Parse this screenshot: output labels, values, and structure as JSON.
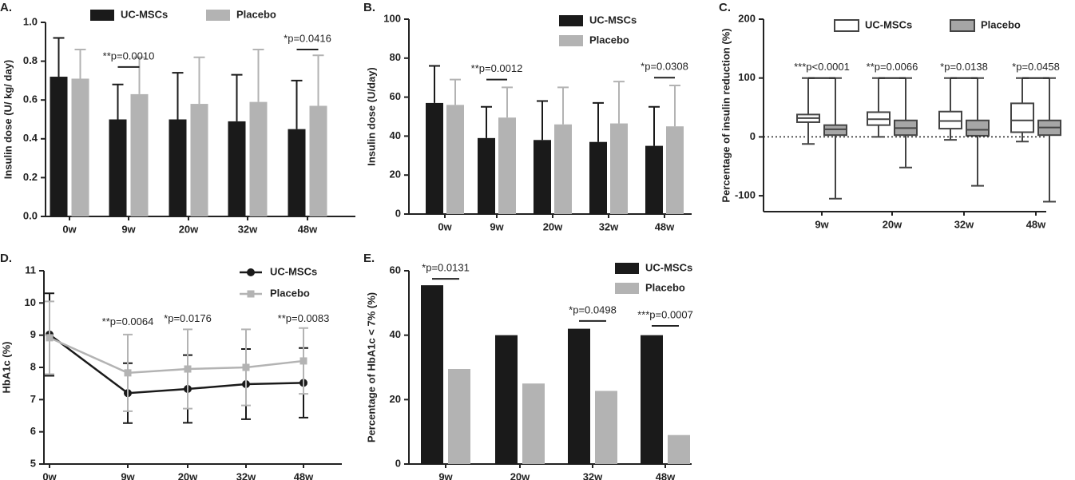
{
  "chart_data": [
    {
      "type": "bar",
      "title": "A.",
      "y_label": "Insulin dose (U/ kg/ day)",
      "categories": [
        "0w",
        "9w",
        "20w",
        "32w",
        "48w"
      ],
      "series": [
        {
          "name": "UC-MSCs",
          "color": "#1a1a1a",
          "values": [
            0.72,
            0.5,
            0.5,
            0.49,
            0.45
          ],
          "errors": [
            0.2,
            0.18,
            0.24,
            0.24,
            0.25
          ]
        },
        {
          "name": "Placebo",
          "color": "#b3b3b3",
          "values": [
            0.71,
            0.63,
            0.58,
            0.59,
            0.57
          ],
          "errors": [
            0.15,
            0.19,
            0.24,
            0.27,
            0.26
          ]
        }
      ],
      "ylim": [
        0,
        1.0
      ],
      "yticks": [
        {
          "value": 0,
          "label": "0.0"
        },
        0.2,
        0.4,
        0.6,
        0.8,
        {
          "value": 1.0,
          "label": "1.0"
        }
      ],
      "annotations": [
        "**p=0.0010",
        "*p=0.0416"
      ]
    },
    {
      "type": "bar",
      "title": "B.",
      "y_label": "Insulin dose (U/day)",
      "categories": [
        "0w",
        "9w",
        "20w",
        "32w",
        "48w"
      ],
      "series": [
        {
          "name": "UC-MSCs",
          "color": "#1a1a1a",
          "values": [
            57,
            39,
            38,
            37,
            35
          ],
          "errors": [
            19,
            16,
            20,
            20,
            20
          ]
        },
        {
          "name": "Placebo",
          "color": "#b3b3b3",
          "values": [
            56,
            49.5,
            46,
            46.5,
            45
          ],
          "errors": [
            13,
            15.5,
            19,
            21.5,
            21
          ]
        }
      ],
      "ylim": [
        0,
        100
      ],
      "yticks": [
        0,
        20,
        40,
        60,
        80,
        100
      ],
      "annotations": [
        "**p=0.0012",
        "*p=0.0308"
      ]
    },
    {
      "type": "box",
      "title": "C.",
      "y_label": "Percentage of insulin reduction (%)",
      "categories": [
        "9w",
        "20w",
        "32w",
        "48w"
      ],
      "series": [
        {
          "name": "UC-MSCs",
          "color": "#ffffff",
          "values": [
            [
              -12,
              25,
              32,
              38,
              100
            ],
            [
              0,
              20,
              30,
              42,
              100
            ],
            [
              -5,
              14,
              27,
              43,
              100
            ],
            [
              -8,
              8,
              28,
              57,
              100
            ]
          ]
        },
        {
          "name": "Placebo",
          "color": "#a6a6a6",
          "values": [
            [
              -105,
              3,
              13,
              20,
              100
            ],
            [
              -52,
              3,
              15,
              28,
              100
            ],
            [
              -83,
              2,
              12,
              28,
              100
            ],
            [
              -110,
              3,
              16,
              28,
              100
            ]
          ]
        }
      ],
      "ylim": [
        -127,
        200
      ],
      "yticks": [
        -100,
        0,
        100,
        200
      ],
      "annotations": [
        "***p<0.0001",
        "**p=0.0066",
        "*p=0.0138",
        "*p=0.0458"
      ]
    },
    {
      "type": "line",
      "title": "D.",
      "y_label": "HbA1c (%)",
      "categories": [
        "0w",
        "9w",
        "20w",
        "32w",
        "48w"
      ],
      "series": [
        {
          "name": "UC-MSCs",
          "color": "#1a1a1a",
          "marker": "circle",
          "values": [
            9.02,
            7.2,
            7.33,
            7.48,
            7.52
          ],
          "errors": [
            1.28,
            0.93,
            1.05,
            1.09,
            1.08
          ]
        },
        {
          "name": "Placebo",
          "color": "#b3b3b3",
          "marker": "square",
          "values": [
            8.92,
            7.83,
            7.95,
            8.0,
            8.2
          ],
          "errors": [
            1.13,
            1.19,
            1.23,
            1.18,
            1.02
          ]
        }
      ],
      "ylim": [
        5,
        11
      ],
      "yticks": [
        5,
        6,
        7,
        8,
        9,
        10,
        11
      ],
      "annotations": [
        "**p=0.0064",
        "*p=0.0176",
        "**p=0.0083"
      ]
    },
    {
      "type": "bar",
      "title": "E.",
      "y_label": "Percentage of HbA1c < 7% (%)",
      "categories": [
        "9w",
        "20w",
        "32w",
        "48w"
      ],
      "series": [
        {
          "name": "UC-MSCs",
          "color": "#1a1a1a",
          "values": [
            55.5,
            40,
            42,
            40
          ]
        },
        {
          "name": "Placebo",
          "color": "#b3b3b3",
          "values": [
            29.5,
            25,
            22.7,
            9
          ]
        }
      ],
      "ylim": [
        0,
        60
      ],
      "yticks": [
        0,
        20,
        40,
        60
      ],
      "annotations": [
        "*p=0.0131",
        "*p=0.0498",
        "***p=0.0007"
      ]
    }
  ]
}
